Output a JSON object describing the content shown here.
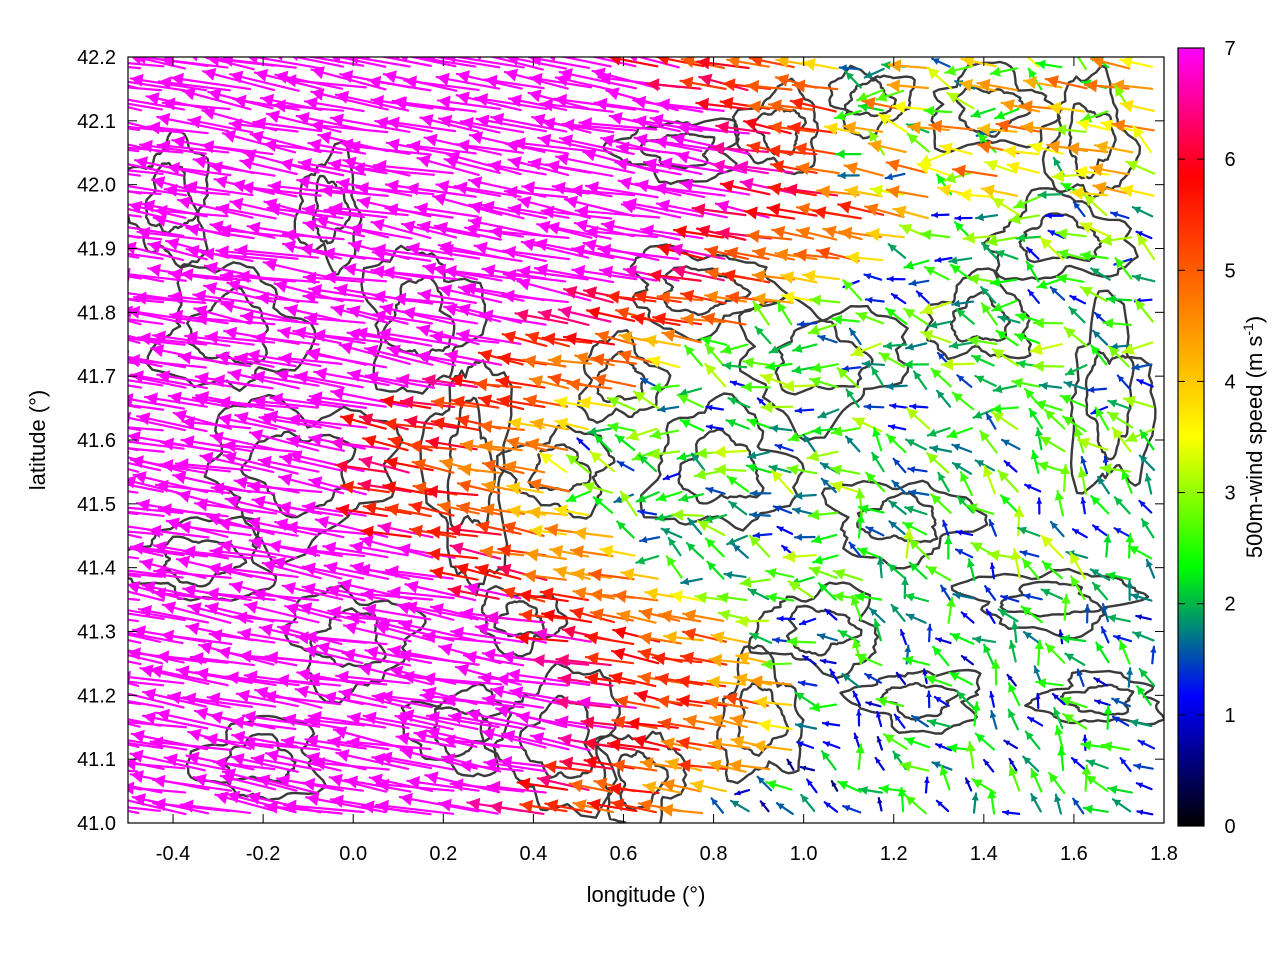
{
  "chart_data": {
    "type": "vector-field",
    "xlabel": "longitude (°)",
    "ylabel": "latitude (°)",
    "xlim": [
      -0.5,
      1.8
    ],
    "ylim": [
      41.0,
      42.2
    ],
    "x_ticks": [
      -0.4,
      -0.2,
      0.0,
      0.2,
      0.4,
      0.6,
      0.8,
      1.0,
      1.2,
      1.4,
      1.6,
      1.8
    ],
    "x_tick_labels": [
      "-0.4",
      "-0.2",
      "0.0",
      "0.2",
      "0.4",
      "0.6",
      "0.8",
      "1.0",
      "1.2",
      "1.4",
      "1.6",
      "1.8"
    ],
    "y_ticks": [
      41.0,
      41.1,
      41.2,
      41.3,
      41.4,
      41.5,
      41.6,
      41.7,
      41.8,
      41.9,
      42.0,
      42.1,
      42.2
    ],
    "y_tick_labels": [
      "41.0",
      "41.1",
      "41.2",
      "41.3",
      "41.4",
      "41.5",
      "41.6",
      "41.7",
      "41.8",
      "41.9",
      "42.0",
      "42.1",
      "42.2"
    ],
    "colorbar": {
      "label": "500m-wind speed (m s",
      "label_superscript": "-1",
      "label_close": ")",
      "range": [
        0,
        7
      ],
      "ticks": [
        0,
        1,
        2,
        3,
        4,
        5,
        6,
        7
      ],
      "tick_labels": [
        "0",
        "1",
        "2",
        "3",
        "4",
        "5",
        "6",
        "7"
      ],
      "colors": [
        "#000000",
        "#0000ff",
        "#00ff00",
        "#ffff00",
        "#ff8000",
        "#ff0000",
        "#ff00ff"
      ]
    },
    "vector_color_by": "wind speed",
    "contours": "terrain (dark gray lines)",
    "grid": false
  }
}
